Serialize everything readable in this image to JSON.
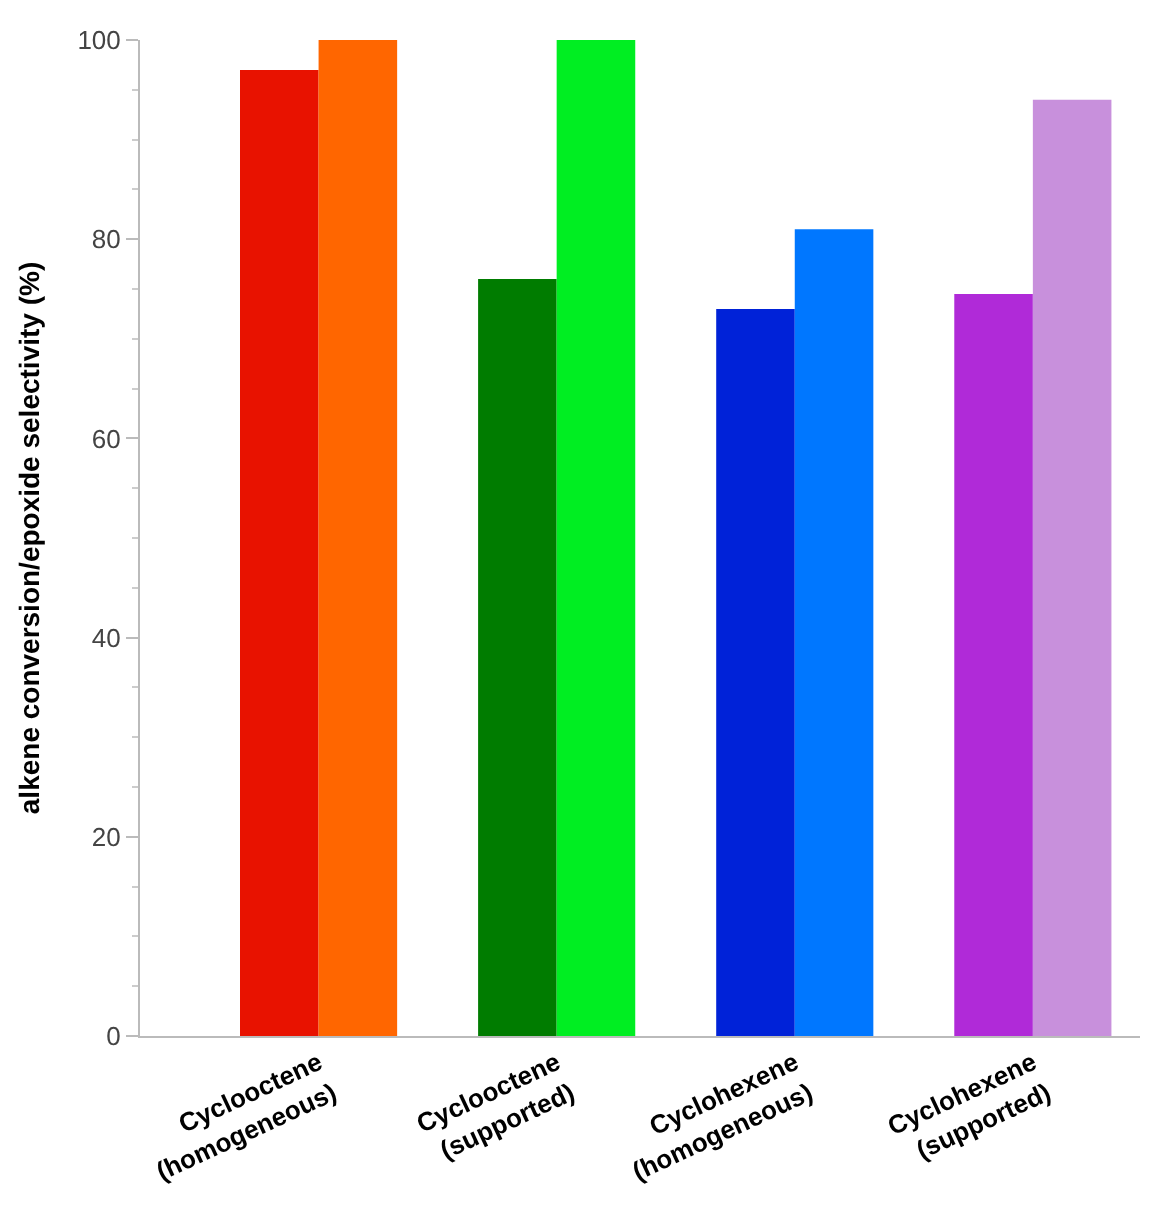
{
  "chart_data": {
    "type": "bar",
    "ylabel": "alkene conversion/epoxide selectivity (%)",
    "categories": [
      "Cyclooctene\n(homogeneous)",
      "Cyclooctene\n(supported)",
      "Cyclohexene\n(homogeneous)",
      "Cyclohexene\n(supported)"
    ],
    "series": [
      {
        "colors": [
          "#e81200",
          "#007c00",
          "#0022d8",
          "#b02ad8"
        ],
        "values": [
          97,
          76,
          73,
          74.5
        ]
      },
      {
        "colors": [
          "#ff6600",
          "#00ee22",
          "#0077ff",
          "#c890dc"
        ],
        "values": [
          100,
          100,
          81,
          94
        ]
      }
    ],
    "ylim": [
      0,
      100
    ],
    "yticks": [
      0,
      20,
      40,
      60,
      80,
      100
    ]
  }
}
